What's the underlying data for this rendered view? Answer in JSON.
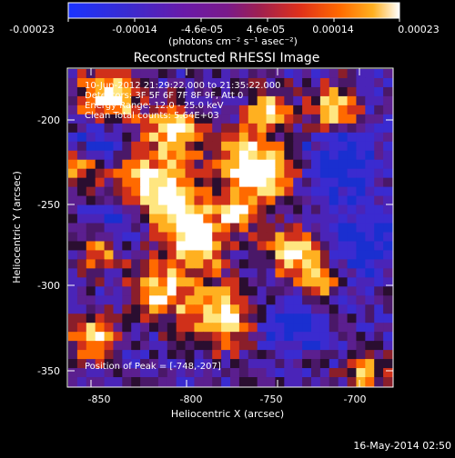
{
  "colorbar": {
    "tick_labels": [
      "-0.00023",
      "-0.00014",
      "-4.6e-05",
      "4.6e-05",
      "0.00014",
      "0.00023"
    ],
    "unit_label": "(photons cm⁻² s⁻¹ asec⁻²)",
    "colors": [
      "#1a33ff",
      "#3a2bd0",
      "#6a1aa8",
      "#7a1a8a",
      "#a0204f",
      "#e0301a",
      "#ff6a00",
      "#ffb020",
      "#ffe680",
      "#ffffff"
    ]
  },
  "image_title": "Reconstructed RHESSI Image",
  "info": {
    "time_range": "10-Jun-2012 21:29:22.000 to 21:35:22.000",
    "detectors": "Detectors: 3F 5F 6F 7F 8F 9F, Att 0",
    "energy": "Energy Range: 12.0 - 25.0 keV",
    "clean": "Clean    Total counts: 5.64E+03",
    "peak": "Position of Peak = [-748,-207]"
  },
  "axes": {
    "xlabel": "Heliocentric X (arcsec)",
    "ylabel": "Heliocentric Y (arcsec)",
    "xticks": [
      "-850",
      "-800",
      "-750",
      "-700"
    ],
    "yticks": [
      "-200",
      "-250",
      "-300",
      "-350"
    ],
    "xlim": [
      -875,
      -680
    ],
    "ylim": [
      -362,
      -170
    ]
  },
  "footer_timestamp": "16-May-2014 02:50",
  "palette": {
    "background": "#000000",
    "cold": "#3a2bd0",
    "neutral": "#5b1f8f",
    "warm": "#e0301a",
    "hot": "#ffe680"
  }
}
